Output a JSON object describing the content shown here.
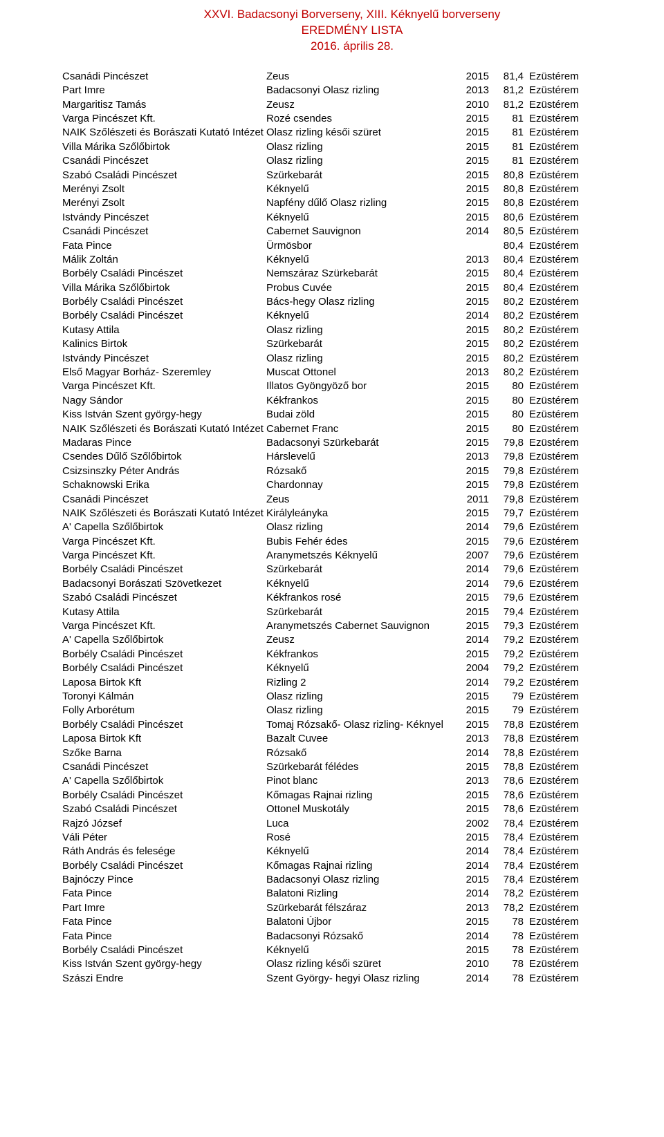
{
  "header": {
    "line1": "XXVI. Badacsonyi Borverseny, XIII. Kéknyelű borverseny",
    "line2": "EREDMÉNY LISTA",
    "line3": "2016. április 28."
  },
  "table": {
    "rows": [
      {
        "producer": "Csanádi Pincészet",
        "wine": "Zeus",
        "year": "2015",
        "score": "81,4",
        "medal": "Ezüstérem"
      },
      {
        "producer": "Part Imre",
        "wine": "Badacsonyi Olasz rizling",
        "year": "2013",
        "score": "81,2",
        "medal": "Ezüstérem"
      },
      {
        "producer": "Margaritisz Tamás",
        "wine": "Zeusz",
        "year": "2010",
        "score": "81,2",
        "medal": "Ezüstérem"
      },
      {
        "producer": "Varga Pincészet Kft.",
        "wine": "Rozé csendes",
        "year": "2015",
        "score": "81",
        "medal": "Ezüstérem"
      },
      {
        "producer": "NAIK Szőlészeti és Borászati Kutató Intézet",
        "wine": "Olasz rizling késői szüret",
        "year": "2015",
        "score": "81",
        "medal": "Ezüstérem"
      },
      {
        "producer": "Villa Márika Szőlőbirtok",
        "wine": "Olasz rizling",
        "year": "2015",
        "score": "81",
        "medal": "Ezüstérem"
      },
      {
        "producer": "Csanádi Pincészet",
        "wine": "Olasz rizling",
        "year": "2015",
        "score": "81",
        "medal": "Ezüstérem"
      },
      {
        "producer": "Szabó Családi Pincészet",
        "wine": "Szürkebarát",
        "year": "2015",
        "score": "80,8",
        "medal": "Ezüstérem"
      },
      {
        "producer": "Merényi Zsolt",
        "wine": "Kéknyelű",
        "year": "2015",
        "score": "80,8",
        "medal": "Ezüstérem"
      },
      {
        "producer": "Merényi Zsolt",
        "wine": "Napfény dűlő Olasz rizling",
        "year": "2015",
        "score": "80,8",
        "medal": "Ezüstérem"
      },
      {
        "producer": "Istvándy Pincészet",
        "wine": "Kéknyelű",
        "year": "2015",
        "score": "80,6",
        "medal": "Ezüstérem"
      },
      {
        "producer": "Csanádi Pincészet",
        "wine": "Cabernet Sauvignon",
        "year": "2014",
        "score": "80,5",
        "medal": "Ezüstérem"
      },
      {
        "producer": "Fata Pince",
        "wine": "Ürmösbor",
        "year": "",
        "score": "80,4",
        "medal": "Ezüstérem"
      },
      {
        "producer": "Málik Zoltán",
        "wine": "Kéknyelű",
        "year": "2013",
        "score": "80,4",
        "medal": "Ezüstérem"
      },
      {
        "producer": "Borbély Családi Pincészet",
        "wine": "Nemszáraz Szürkebarát",
        "year": "2015",
        "score": "80,4",
        "medal": "Ezüstérem"
      },
      {
        "producer": "Villa Márika Szőlőbirtok",
        "wine": "Probus Cuvée",
        "year": "2015",
        "score": "80,4",
        "medal": "Ezüstérem"
      },
      {
        "producer": "Borbély Családi Pincészet",
        "wine": "Bács-hegy Olasz rizling",
        "year": "2015",
        "score": "80,2",
        "medal": "Ezüstérem"
      },
      {
        "producer": "Borbély Családi Pincészet",
        "wine": "Kéknyelű",
        "year": "2014",
        "score": "80,2",
        "medal": "Ezüstérem"
      },
      {
        "producer": "Kutasy Attila",
        "wine": "Olasz rizling",
        "year": "2015",
        "score": "80,2",
        "medal": "Ezüstérem"
      },
      {
        "producer": "Kalinics Birtok",
        "wine": "Szürkebarát",
        "year": "2015",
        "score": "80,2",
        "medal": "Ezüstérem"
      },
      {
        "producer": "Istvándy Pincészet",
        "wine": "Olasz rizling",
        "year": "2015",
        "score": "80,2",
        "medal": "Ezüstérem"
      },
      {
        "producer": "Első Magyar Borház- Szeremley",
        "wine": "Muscat Ottonel",
        "year": "2013",
        "score": "80,2",
        "medal": "Ezüstérem"
      },
      {
        "producer": "Varga Pincészet Kft.",
        "wine": "Illatos Gyöngyöző bor",
        "year": "2015",
        "score": "80",
        "medal": "Ezüstérem"
      },
      {
        "producer": "Nagy Sándor",
        "wine": "Kékfrankos",
        "year": "2015",
        "score": "80",
        "medal": "Ezüstérem"
      },
      {
        "producer": "Kiss István Szent györgy-hegy",
        "wine": "Budai zöld",
        "year": "2015",
        "score": "80",
        "medal": "Ezüstérem"
      },
      {
        "producer": "NAIK Szőlészeti és Borászati Kutató Intézet",
        "wine": "Cabernet Franc",
        "year": "2015",
        "score": "80",
        "medal": "Ezüstérem"
      },
      {
        "producer": "Madaras Pince",
        "wine": "Badacsonyi Szürkebarát",
        "year": "2015",
        "score": "79,8",
        "medal": "Ezüstérem"
      },
      {
        "producer": "Csendes Dűlő Szőlőbirtok",
        "wine": "Hárslevelű",
        "year": "2013",
        "score": "79,8",
        "medal": "Ezüstérem"
      },
      {
        "producer": "Csizsinszky Péter András",
        "wine": "Rózsakő",
        "year": "2015",
        "score": "79,8",
        "medal": "Ezüstérem"
      },
      {
        "producer": "Schaknowski Erika",
        "wine": "Chardonnay",
        "year": "2015",
        "score": "79,8",
        "medal": "Ezüstérem"
      },
      {
        "producer": "Csanádi Pincészet",
        "wine": "Zeus",
        "year": "2011",
        "score": "79,8",
        "medal": "Ezüstérem"
      },
      {
        "producer": "NAIK Szőlészeti és Borászati Kutató Intézet",
        "wine": "Királyleányka",
        "year": "2015",
        "score": "79,7",
        "medal": "Ezüstérem"
      },
      {
        "producer": "A' Capella Szőlőbirtok",
        "wine": "Olasz rizling",
        "year": "2014",
        "score": "79,6",
        "medal": "Ezüstérem"
      },
      {
        "producer": "Varga Pincészet Kft.",
        "wine": "Bubis Fehér édes",
        "year": "2015",
        "score": "79,6",
        "medal": "Ezüstérem"
      },
      {
        "producer": "Varga Pincészet Kft.",
        "wine": "Aranymetszés Kéknyelű",
        "year": "2007",
        "score": "79,6",
        "medal": "Ezüstérem"
      },
      {
        "producer": "Borbély Családi Pincészet",
        "wine": "Szürkebarát",
        "year": "2014",
        "score": "79,6",
        "medal": "Ezüstérem"
      },
      {
        "producer": "Badacsonyi Borászati Szövetkezet",
        "wine": "Kéknyelű",
        "year": "2014",
        "score": "79,6",
        "medal": "Ezüstérem"
      },
      {
        "producer": "Szabó Családi Pincészet",
        "wine": "Kékfrankos rosé",
        "year": "2015",
        "score": "79,6",
        "medal": "Ezüstérem"
      },
      {
        "producer": "Kutasy Attila",
        "wine": "Szürkebarát",
        "year": "2015",
        "score": "79,4",
        "medal": "Ezüstérem"
      },
      {
        "producer": "Varga Pincészet Kft.",
        "wine": "Aranymetszés Cabernet Sauvignon",
        "year": "2015",
        "score": "79,3",
        "medal": "Ezüstérem"
      },
      {
        "producer": "A' Capella Szőlőbirtok",
        "wine": "Zeusz",
        "year": "2014",
        "score": "79,2",
        "medal": "Ezüstérem"
      },
      {
        "producer": "Borbély Családi Pincészet",
        "wine": "Kékfrankos",
        "year": "2015",
        "score": "79,2",
        "medal": "Ezüstérem"
      },
      {
        "producer": "Borbély Családi Pincészet",
        "wine": "Kéknyelű",
        "year": "2004",
        "score": "79,2",
        "medal": "Ezüstérem"
      },
      {
        "producer": "Laposa Birtok Kft",
        "wine": "Rizling 2",
        "year": "2014",
        "score": "79,2",
        "medal": "Ezüstérem"
      },
      {
        "producer": "Toronyi Kálmán",
        "wine": "Olasz rizling",
        "year": "2015",
        "score": "79",
        "medal": "Ezüstérem"
      },
      {
        "producer": "Folly Arborétum",
        "wine": "Olasz rizling",
        "year": "2015",
        "score": "79",
        "medal": "Ezüstérem"
      },
      {
        "producer": "Borbély Családi Pincészet",
        "wine": "Tomaj Rózsakő- Olasz rizling- Kéknyel",
        "year": "2015",
        "score": "78,8",
        "medal": "Ezüstérem"
      },
      {
        "producer": "Laposa Birtok Kft",
        "wine": "Bazalt Cuvee",
        "year": "2013",
        "score": "78,8",
        "medal": "Ezüstérem"
      },
      {
        "producer": "Szőke Barna",
        "wine": "Rózsakő",
        "year": "2014",
        "score": "78,8",
        "medal": "Ezüstérem"
      },
      {
        "producer": "Csanádi Pincészet",
        "wine": "Szürkebarát félédes",
        "year": "2015",
        "score": "78,8",
        "medal": "Ezüstérem"
      },
      {
        "producer": "A' Capella Szőlőbirtok",
        "wine": "Pinot blanc",
        "year": "2013",
        "score": "78,6",
        "medal": "Ezüstérem"
      },
      {
        "producer": "Borbély Családi Pincészet",
        "wine": "Kőmagas Rajnai rizling",
        "year": "2015",
        "score": "78,6",
        "medal": "Ezüstérem"
      },
      {
        "producer": "Szabó Családi Pincészet",
        "wine": "Ottonel Muskotály",
        "year": "2015",
        "score": "78,6",
        "medal": "Ezüstérem"
      },
      {
        "producer": "Rajzó József",
        "wine": "Luca",
        "year": "2002",
        "score": "78,4",
        "medal": "Ezüstérem"
      },
      {
        "producer": "Váli Péter",
        "wine": "Rosé",
        "year": "2015",
        "score": "78,4",
        "medal": "Ezüstérem"
      },
      {
        "producer": "Ráth András és felesége",
        "wine": "Kéknyelű",
        "year": "2014",
        "score": "78,4",
        "medal": "Ezüstérem"
      },
      {
        "producer": "Borbély Családi Pincészet",
        "wine": "Kőmagas Rajnai rizling",
        "year": "2014",
        "score": "78,4",
        "medal": "Ezüstérem"
      },
      {
        "producer": "Bajnóczy Pince",
        "wine": "Badacsonyi Olasz rizling",
        "year": "2015",
        "score": "78,4",
        "medal": "Ezüstérem"
      },
      {
        "producer": "Fata Pince",
        "wine": "Balatoni Rizling",
        "year": "2014",
        "score": "78,2",
        "medal": "Ezüstérem"
      },
      {
        "producer": "Part Imre",
        "wine": "Szürkebarát félszáraz",
        "year": "2013",
        "score": "78,2",
        "medal": "Ezüstérem"
      },
      {
        "producer": "Fata Pince",
        "wine": "Balatoni Újbor",
        "year": "2015",
        "score": "78",
        "medal": "Ezüstérem"
      },
      {
        "producer": "Fata Pince",
        "wine": "Badacsonyi Rózsakő",
        "year": "2014",
        "score": "78",
        "medal": "Ezüstérem"
      },
      {
        "producer": "Borbély Családi Pincészet",
        "wine": "Kéknyelű",
        "year": "2015",
        "score": "78",
        "medal": "Ezüstérem"
      },
      {
        "producer": "Kiss István Szent györgy-hegy",
        "wine": "Olasz rizling késői szüret",
        "year": "2010",
        "score": "78",
        "medal": "Ezüstérem"
      },
      {
        "producer": "Szászi Endre",
        "wine": "Szent György- hegyi Olasz rizling",
        "year": "2014",
        "score": "78",
        "medal": "Ezüstérem"
      }
    ]
  }
}
